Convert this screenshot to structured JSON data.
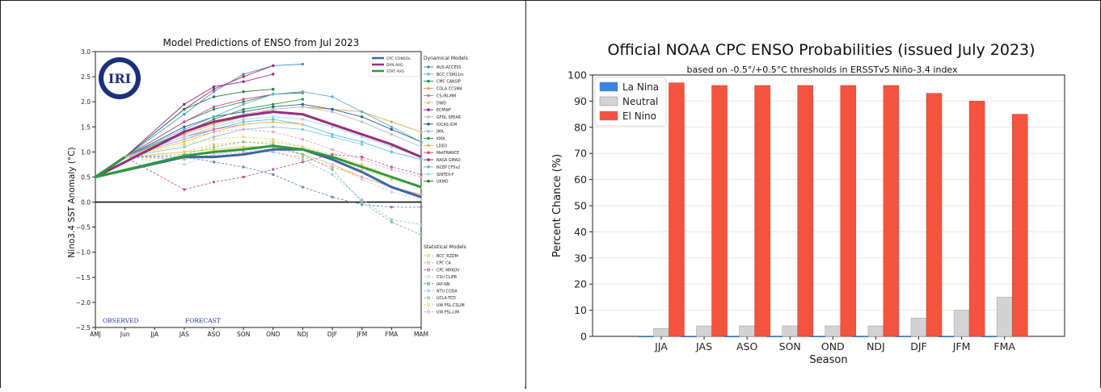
{
  "left_chart": {
    "title": "Model Predictions of ENSO from Jul 2023",
    "ylabel": "Nino3.4 SST Anomaly (°C)",
    "logo_text": "IRI",
    "observed_label": "OBSERVED",
    "forecast_label": "FORECAST",
    "dynamical_header": "Dynamical Models",
    "statistical_header": "Statistical Models",
    "avg_legend": [
      "CPC CONSOL",
      "DYN AVG",
      "STAT AVG"
    ],
    "dynamical_models": [
      "AUS-ACCESS",
      "BCC_CSM11m",
      "CMC CANSIP",
      "COLA CCSM4",
      "CS-IRI-MM",
      "DWD",
      "ECMWF",
      "GFDL SPEAR",
      "IOCAS ICM",
      "JMA",
      "KMA",
      "LDEO",
      "MetFRANCE",
      "NASA GMAO",
      "NCEP CFSv2",
      "SINTEX-F",
      "UKMO"
    ],
    "statistical_models": [
      "BCC_RZDM",
      "CPC CA",
      "CPC MRKOV",
      "CSU CLIPR",
      "IAP-NN",
      "NTU CODA",
      "UCLA-TCD",
      "UW PSL-CSLIM",
      "UW PSL-LIM"
    ]
  },
  "right_chart": {
    "title": "Official NOAA CPC ENSO Probabilities (issued July 2023)",
    "subtitle": "based on -0.5°/+0.5°C thresholds in ERSSTv5 Niño-3.4 index",
    "ylabel": "Percent Chance (%)",
    "xlabel": "Season",
    "legend": [
      "La Nina",
      "Neutral",
      "El Nino"
    ]
  },
  "colors": {
    "cpc_consol": "#3c64a8",
    "dyn_avg": "#9b2a7e",
    "stat_avg": "#2e9a3a",
    "la_nina": "#3b82e8",
    "neutral": "#d3d3d3",
    "el_nino": "#f4543e"
  },
  "chart_data": [
    {
      "type": "line",
      "title": "Model Predictions of ENSO from Jul 2023",
      "ylabel": "Nino3.4 SST Anomaly (°C)",
      "categories": [
        "AMJ",
        "Jun",
        "JJA",
        "JAS",
        "ASO",
        "SON",
        "OND",
        "NDJ",
        "DJF",
        "JFM",
        "FMA",
        "MAM"
      ],
      "ylim": [
        -2.5,
        3.0
      ],
      "yticks": [
        -2.5,
        -2.0,
        -1.5,
        -1.0,
        -0.5,
        0.0,
        0.5,
        1.0,
        1.5,
        2.0,
        2.5,
        3.0
      ],
      "grid": false,
      "legend_position": "right",
      "series": [
        {
          "name": "CPC CONSOL",
          "values": [
            0.5,
            0.9,
            null,
            0.9,
            0.9,
            0.95,
            1.05,
            1.05,
            0.85,
            0.6,
            0.3,
            0.1
          ]
        },
        {
          "name": "DYN AVG",
          "values": [
            0.5,
            0.9,
            null,
            1.4,
            1.6,
            1.72,
            1.8,
            1.75,
            1.55,
            1.35,
            1.15,
            0.9
          ]
        },
        {
          "name": "STAT AVG",
          "values": [
            0.5,
            0.9,
            null,
            0.92,
            1.0,
            1.05,
            1.12,
            1.05,
            0.9,
            0.7,
            0.5,
            0.3
          ]
        },
        {
          "name": "AUS-ACCESS",
          "values": [
            null,
            null,
            null,
            1.75,
            2.2,
            2.55,
            2.72,
            2.75,
            null,
            null,
            null,
            null
          ]
        },
        {
          "name": "BCC_CSM11m",
          "values": [
            null,
            null,
            null,
            1.25,
            1.45,
            1.6,
            1.65,
            1.55,
            1.35,
            1.2,
            1.0,
            0.85
          ]
        },
        {
          "name": "CMC CANSIP",
          "values": [
            null,
            null,
            null,
            1.6,
            1.85,
            2.0,
            2.15,
            2.18,
            null,
            null,
            null,
            null
          ]
        },
        {
          "name": "COLA CCSM4",
          "values": [
            null,
            null,
            null,
            1.35,
            1.55,
            1.7,
            1.85,
            1.9,
            1.85,
            1.8,
            1.6,
            1.4
          ]
        },
        {
          "name": "CS-IRI-MM",
          "values": [
            null,
            null,
            null,
            1.3,
            1.45,
            1.55,
            1.6,
            1.55,
            null,
            null,
            null,
            null
          ]
        },
        {
          "name": "DWD",
          "values": [
            null,
            null,
            null,
            1.2,
            1.4,
            1.55,
            1.6,
            1.55,
            null,
            null,
            null,
            null
          ]
        },
        {
          "name": "ECMWF",
          "values": [
            null,
            null,
            null,
            1.95,
            2.3,
            2.4,
            2.55,
            null,
            null,
            null,
            null,
            null
          ]
        },
        {
          "name": "GFDL SPEAR",
          "values": [
            null,
            null,
            null,
            1.4,
            1.6,
            1.75,
            1.85,
            1.9,
            1.8,
            1.6,
            1.35,
            1.1
          ]
        },
        {
          "name": "IOCAS ICM",
          "values": [
            null,
            null,
            null,
            1.5,
            1.7,
            1.8,
            1.9,
            1.95,
            1.85,
            1.7,
            1.45,
            1.2
          ]
        },
        {
          "name": "JMA",
          "values": [
            null,
            null,
            null,
            1.1,
            1.3,
            1.45,
            1.5,
            1.45,
            1.3,
            1.15,
            null,
            null
          ]
        },
        {
          "name": "KMA",
          "values": [
            null,
            null,
            null,
            1.4,
            1.65,
            1.85,
            1.95,
            2.05,
            null,
            null,
            null,
            null
          ]
        },
        {
          "name": "LDEO",
          "values": [
            null,
            null,
            null,
            1.0,
            1.05,
            1.1,
            1.1,
            0.95,
            0.75,
            0.5,
            0.3,
            0.15
          ]
        },
        {
          "name": "MetFRANCE",
          "values": [
            null,
            null,
            null,
            1.6,
            1.9,
            2.05,
            2.15,
            2.2,
            null,
            null,
            null,
            null
          ]
        },
        {
          "name": "NASA GMAO",
          "values": [
            null,
            null,
            null,
            1.85,
            2.25,
            2.5,
            2.72,
            null,
            null,
            null,
            null,
            null
          ]
        },
        {
          "name": "NCEP CFSv2",
          "values": [
            null,
            null,
            null,
            1.45,
            1.7,
            1.95,
            2.15,
            2.2,
            2.1,
            1.8,
            1.5,
            1.2
          ]
        },
        {
          "name": "SINTEX-F",
          "values": [
            null,
            null,
            null,
            1.3,
            1.5,
            1.65,
            1.7,
            1.65,
            1.5,
            1.3,
            1.1,
            0.9
          ]
        },
        {
          "name": "UKMO",
          "values": [
            null,
            null,
            null,
            1.85,
            2.1,
            2.2,
            2.25,
            null,
            null,
            null,
            null,
            null
          ]
        },
        {
          "name": "BCC_RZDM",
          "values": [
            null,
            null,
            null,
            1.0,
            1.15,
            1.2,
            1.2,
            1.1,
            0.95,
            0.75,
            0.5,
            0.3
          ]
        },
        {
          "name": "CPC CA",
          "values": [
            null,
            null,
            null,
            0.85,
            0.95,
            1.0,
            1.0,
            0.9,
            0.7,
            0.5,
            0.3,
            0.15
          ]
        },
        {
          "name": "CPC MRKOV",
          "values": [
            null,
            null,
            null,
            0.25,
            0.4,
            0.5,
            0.65,
            0.8,
            0.95,
            0.9,
            0.7,
            0.55
          ]
        },
        {
          "name": "CSU CLIPR",
          "values": [
            null,
            null,
            null,
            0.75,
            0.95,
            1.05,
            1.05,
            0.95,
            0.75,
            0.45,
            0.2,
            0.05
          ]
        },
        {
          "name": "IAP-NN",
          "values": [
            null,
            null,
            null,
            0.9,
            0.8,
            0.7,
            0.55,
            0.3,
            0.1,
            -0.05,
            -0.1,
            -0.1
          ]
        },
        {
          "name": "NTU CODA",
          "values": [
            null,
            null,
            null,
            0.95,
            1.0,
            1.05,
            1.0,
            0.85,
            0.55,
            0.05,
            -0.35,
            -0.45
          ]
        },
        {
          "name": "UCLA-TCD",
          "values": [
            null,
            null,
            null,
            0.95,
            1.1,
            1.2,
            1.15,
            0.95,
            0.65,
            0.0,
            -0.4,
            -0.65
          ]
        },
        {
          "name": "UW PSL-CSLIM",
          "values": [
            null,
            null,
            null,
            1.15,
            1.25,
            1.3,
            1.25,
            1.1,
            0.9,
            0.65,
            0.45,
            0.3
          ]
        },
        {
          "name": "UW PSL-LIM",
          "values": [
            null,
            null,
            null,
            1.25,
            1.4,
            1.45,
            1.4,
            1.25,
            1.05,
            0.85,
            0.65,
            0.5
          ]
        }
      ]
    },
    {
      "type": "bar",
      "title": "Official NOAA CPC ENSO Probabilities (issued July 2023)",
      "subtitle": "based on -0.5°/+0.5°C thresholds in ERSSTv5 Niño-3.4 index",
      "xlabel": "Season",
      "ylabel": "Percent Chance (%)",
      "categories": [
        "JJA",
        "JAS",
        "ASO",
        "SON",
        "OND",
        "NDJ",
        "DJF",
        "JFM",
        "FMA"
      ],
      "ylim": [
        0,
        100
      ],
      "yticks": [
        0,
        10,
        20,
        30,
        40,
        50,
        60,
        70,
        80,
        90,
        100
      ],
      "grid": true,
      "legend_position": "top-left",
      "series": [
        {
          "name": "La Nina",
          "values": [
            0,
            0,
            0,
            0,
            0,
            0,
            0,
            0,
            0
          ]
        },
        {
          "name": "Neutral",
          "values": [
            3,
            4,
            4,
            4,
            4,
            4,
            7,
            10,
            15
          ]
        },
        {
          "name": "El Nino",
          "values": [
            97,
            96,
            96,
            96,
            96,
            96,
            93,
            90,
            85
          ]
        }
      ]
    }
  ]
}
